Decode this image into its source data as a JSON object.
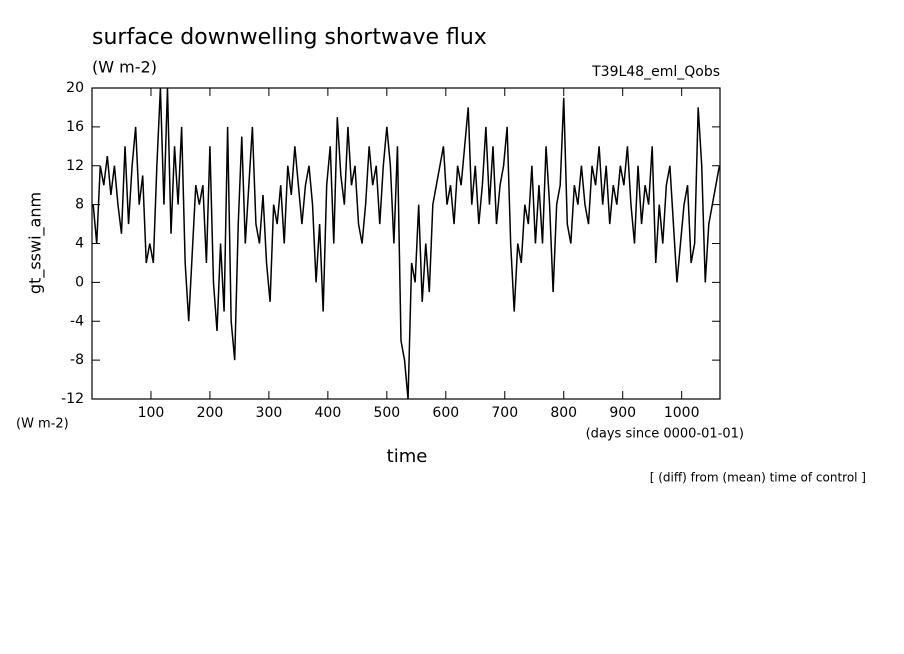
{
  "chart_data": {
    "type": "line",
    "title": "surface downwelling shortwave flux",
    "units": "(W m-2)",
    "run_label": "T39L48_eml_Qobs",
    "y_label": "gt_sswi_anm",
    "y_units": "(W m-2)",
    "x_label": "time",
    "x_units": "(days since 0000-01-01)",
    "note": "[ (diff) from (mean) time of control ]",
    "color": "#000000",
    "xlim": [
      0,
      1065
    ],
    "ylim": [
      -12,
      20
    ],
    "xticks": [
      100,
      200,
      300,
      400,
      500,
      600,
      700,
      800,
      900,
      1000
    ],
    "yticks": [
      -12,
      -8,
      -4,
      0,
      4,
      8,
      12,
      16,
      20
    ],
    "x": [
      2,
      8,
      14,
      20,
      26,
      32,
      38,
      44,
      50,
      56,
      62,
      68,
      74,
      80,
      86,
      92,
      98,
      104,
      110,
      116,
      122,
      128,
      134,
      140,
      146,
      152,
      158,
      164,
      170,
      176,
      182,
      188,
      194,
      200,
      206,
      212,
      218,
      224,
      230,
      236,
      242,
      248,
      254,
      260,
      266,
      272,
      278,
      284,
      290,
      296,
      302,
      308,
      314,
      320,
      326,
      332,
      338,
      344,
      350,
      356,
      362,
      368,
      374,
      380,
      386,
      392,
      398,
      404,
      410,
      416,
      422,
      428,
      434,
      440,
      446,
      452,
      458,
      464,
      470,
      476,
      482,
      488,
      494,
      500,
      506,
      512,
      518,
      524,
      530,
      536,
      542,
      548,
      554,
      560,
      566,
      572,
      578,
      584,
      590,
      596,
      602,
      608,
      614,
      620,
      626,
      632,
      638,
      644,
      650,
      656,
      662,
      668,
      674,
      680,
      686,
      692,
      698,
      704,
      710,
      716,
      722,
      728,
      734,
      740,
      746,
      752,
      758,
      764,
      770,
      776,
      782,
      788,
      794,
      800,
      806,
      812,
      818,
      824,
      830,
      836,
      842,
      848,
      854,
      860,
      866,
      872,
      878,
      884,
      890,
      896,
      902,
      908,
      914,
      920,
      926,
      932,
      938,
      944,
      950,
      956,
      962,
      968,
      974,
      980,
      986,
      992,
      998,
      1004,
      1010,
      1016,
      1022,
      1028,
      1034,
      1040,
      1046,
      1052,
      1058,
      1064
    ],
    "values": [
      8,
      4,
      12,
      10,
      13,
      9,
      12,
      8,
      5,
      14,
      6,
      12,
      16,
      8,
      11,
      2,
      4,
      2,
      12,
      20,
      8,
      20,
      5,
      14,
      8,
      16,
      2,
      -4,
      3,
      10,
      8,
      10,
      2,
      14,
      0,
      -5,
      4,
      -3,
      16,
      -4,
      -8,
      6,
      15,
      4,
      10,
      16,
      6,
      4,
      9,
      2,
      -2,
      8,
      6,
      10,
      4,
      12,
      9,
      14,
      10,
      6,
      10,
      12,
      8,
      0,
      6,
      -3,
      10,
      14,
      4,
      17,
      11,
      8,
      16,
      10,
      12,
      6,
      4,
      8,
      14,
      10,
      12,
      6,
      12,
      16,
      12,
      4,
      14,
      -6,
      -8,
      -12,
      2,
      0,
      8,
      -2,
      4,
      -1,
      8,
      10,
      12,
      14,
      8,
      10,
      6,
      12,
      10,
      14,
      18,
      8,
      12,
      6,
      10,
      16,
      8,
      14,
      6,
      10,
      12,
      16,
      4,
      -3,
      4,
      2,
      8,
      6,
      12,
      4,
      10,
      4,
      14,
      8,
      -1,
      8,
      10,
      19,
      6,
      4,
      10,
      8,
      12,
      8,
      6,
      12,
      10,
      14,
      8,
      12,
      6,
      10,
      8,
      12,
      10,
      14,
      8,
      4,
      12,
      6,
      10,
      8,
      14,
      2,
      8,
      4,
      10,
      12,
      6,
      0,
      4,
      8,
      10,
      2,
      4,
      18,
      12,
      0,
      6,
      8,
      10,
      12
    ]
  }
}
